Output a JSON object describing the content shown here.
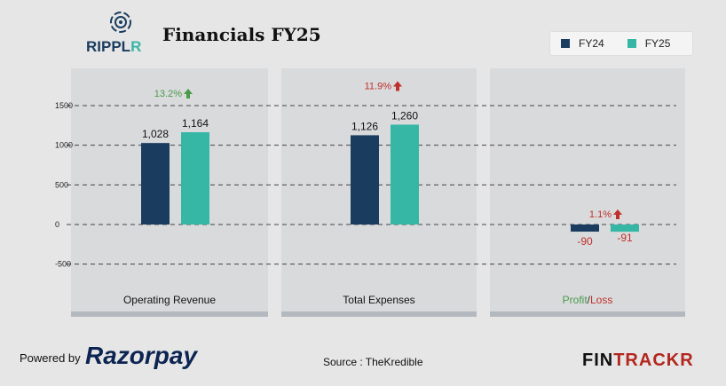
{
  "header": {
    "brand": "RIPPLR",
    "title": "Financials FY25"
  },
  "chart_data": {
    "type": "bar",
    "categories": [
      "Operating Revenue",
      "Total Expenses",
      "Profit/Loss"
    ],
    "series": [
      {
        "name": "FY24",
        "color": "#1a3d5f",
        "values": [
          1028,
          1126,
          -90
        ],
        "labels": [
          "1,028",
          "1,126",
          "-90"
        ]
      },
      {
        "name": "FY25",
        "color": "#36b7a6",
        "values": [
          1164,
          1260,
          -91
        ],
        "labels": [
          "1,164",
          "1,260",
          "-91"
        ]
      }
    ],
    "growth": [
      {
        "label": "13.2%",
        "direction": "up",
        "color": "#4a9a4a"
      },
      {
        "label": "11.9%",
        "direction": "up",
        "color": "#c0302a"
      },
      {
        "label": "1.1%",
        "direction": "up",
        "color": "#c0302a"
      }
    ],
    "yticks": [
      1500,
      1000,
      500,
      0,
      -500
    ],
    "ylim": [
      -600,
      1900
    ],
    "grid": true,
    "legend": "top-right",
    "category_parts": {
      "profit": "Profit",
      "sep": "/",
      "loss": "Loss"
    }
  },
  "footer": {
    "powered_by": "Powered by",
    "partner": "Razorpay",
    "source": "Source : TheKredible",
    "watermark_fin": "FIN",
    "watermark_trackr": "TRACKR"
  }
}
